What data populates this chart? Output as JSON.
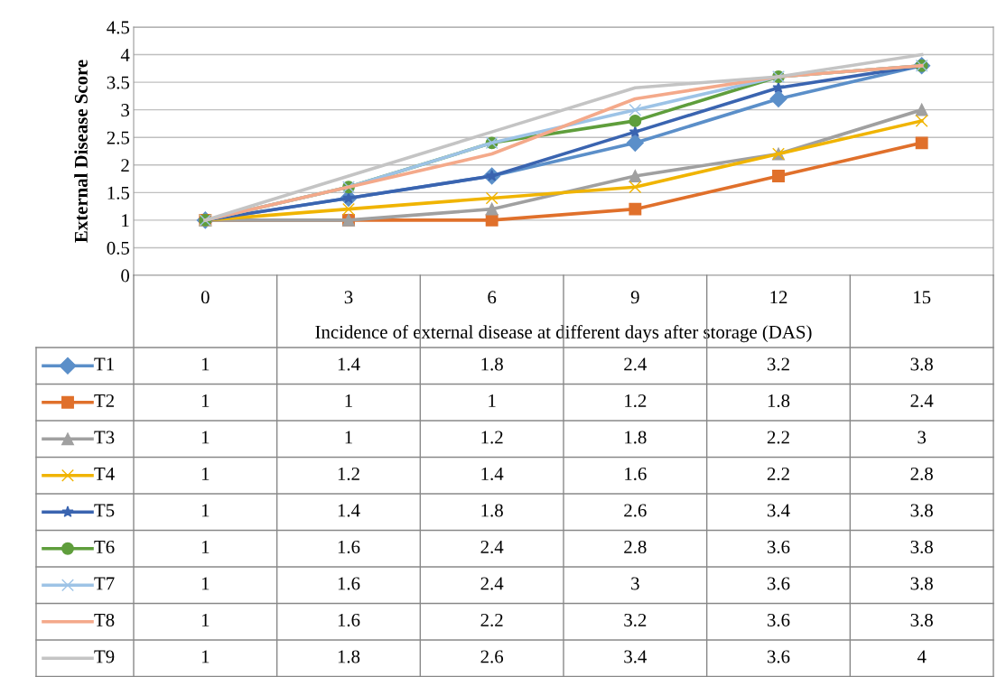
{
  "chart_data": {
    "type": "line",
    "ylabel": "External Disease Score",
    "xlabel": "Incidence of external disease at different days after storage (DAS)",
    "categories": [
      "0",
      "3",
      "6",
      "9",
      "12",
      "15"
    ],
    "ylim": [
      0,
      4.5
    ],
    "yticks": [
      0,
      0.5,
      1,
      1.5,
      2,
      2.5,
      3,
      3.5,
      4,
      4.5
    ],
    "grid": "y",
    "data_labels": true,
    "legend": "bottom left",
    "series": [
      {
        "name": "T1",
        "color": "#5b8fc9",
        "marker": "diamond",
        "values": [
          1,
          1.4,
          1.8,
          2.4,
          3.2,
          3.8
        ]
      },
      {
        "name": "T2",
        "color": "#e0702b",
        "marker": "square",
        "values": [
          1,
          1,
          1,
          1.2,
          1.8,
          2.4
        ]
      },
      {
        "name": "T3",
        "color": "#a0a0a0",
        "marker": "triangle",
        "values": [
          1,
          1,
          1.2,
          1.8,
          2.2,
          3
        ]
      },
      {
        "name": "T4",
        "color": "#f0b400",
        "marker": "cross",
        "values": [
          1,
          1.2,
          1.4,
          1.6,
          2.2,
          2.8
        ]
      },
      {
        "name": "T5",
        "color": "#3a64b0",
        "marker": "star",
        "values": [
          1,
          1.4,
          1.8,
          2.6,
          3.4,
          3.8
        ]
      },
      {
        "name": "T6",
        "color": "#5f9e3c",
        "marker": "circle",
        "values": [
          1,
          1.6,
          2.4,
          2.8,
          3.6,
          3.8
        ]
      },
      {
        "name": "T7",
        "color": "#9dc3e6",
        "marker": "cross",
        "values": [
          1,
          1.6,
          2.4,
          3,
          3.6,
          3.8
        ]
      },
      {
        "name": "T8",
        "color": "#f4a98a",
        "marker": "none",
        "values": [
          1,
          1.6,
          2.2,
          3.2,
          3.6,
          3.8
        ]
      },
      {
        "name": "T9",
        "color": "#c4c4c4",
        "marker": "none",
        "values": [
          1,
          1.8,
          2.6,
          3.4,
          3.6,
          4
        ]
      }
    ]
  }
}
